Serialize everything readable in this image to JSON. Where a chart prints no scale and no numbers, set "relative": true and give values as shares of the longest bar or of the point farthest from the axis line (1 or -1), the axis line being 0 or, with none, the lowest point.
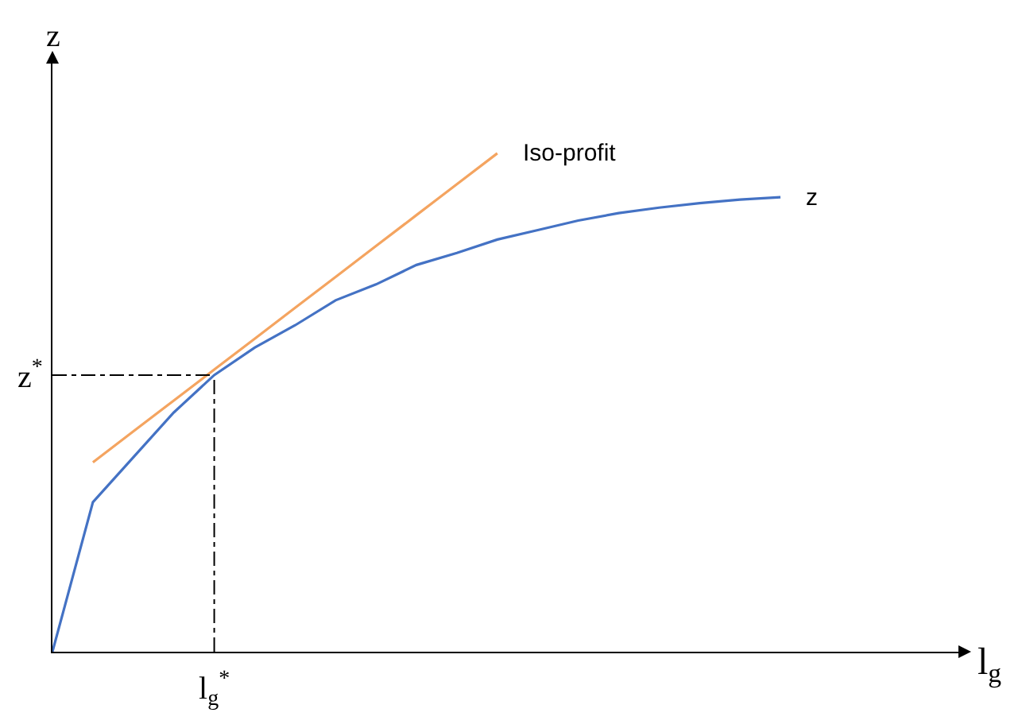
{
  "chart_data": {
    "type": "line",
    "relative": true,
    "xlabel": "l$_{g}$",
    "ylabel": "z",
    "annotations": [
      "l$_{g}$$^{*}$"
    ],
    "categories": [
      null,
      null,
      null,
      null,
      null,
      null,
      null,
      null,
      null,
      null,
      null,
      null,
      null,
      null,
      null,
      null,
      null,
      null,
      null,
      null,
      null,
      null,
      null
    ],
    "series": [
      {
        "name": "z",
        "color": "#4472c4",
        "values": [
          0,
          0.3,
          0.39,
          0.48,
          0.555,
          0.61,
          0.655,
          0.705,
          0.737,
          0.776,
          0.8,
          0.827,
          0.846,
          0.865,
          0.88,
          0.891,
          0.9,
          0.907,
          0.912,
          null,
          null,
          null,
          null
        ]
      },
      {
        "name": "Iso-profit",
        "color": "#f4a460",
        "values": [
          null,
          0.38,
          0.442,
          0.504,
          0.566,
          0.628,
          0.69,
          0.752,
          0.814,
          0.876,
          0.938,
          1,
          null,
          null,
          null,
          null,
          null,
          null,
          null,
          null,
          null,
          null,
          null
        ]
      }
    ],
    "ref_lines": [
      {
        "axis": "y",
        "value": 0.555,
        "label": "z$^{*}$",
        "color": "#000000",
        "line_style": "dashed"
      }
    ],
    "grid": false,
    "legend": false,
    "marker": "none",
    "line_style": "solid"
  }
}
